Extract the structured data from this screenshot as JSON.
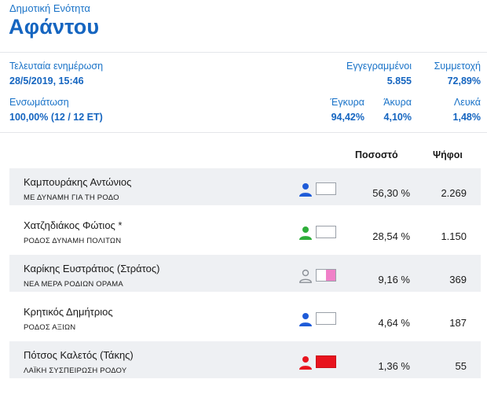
{
  "header": {
    "subtitle": "Δημοτική Ενότητα",
    "title": "Αφάντου"
  },
  "summary": {
    "last_update_label": "Τελευταία ενημέρωση",
    "last_update_value": "28/5/2019, 15:46",
    "integration_label": "Ενσωμάτωση",
    "integration_value": "100,00% (12 / 12 ΕΤ)",
    "registered_label": "Εγγεγραμμένοι",
    "registered_value": "5.855",
    "turnout_label": "Συμμετοχή",
    "turnout_value": "72,89%",
    "valid_label": "Έγκυρα",
    "valid_value": "94,42%",
    "invalid_label": "Άκυρα",
    "invalid_value": "4,10%",
    "blank_label": "Λευκά",
    "blank_value": "1,48%"
  },
  "table": {
    "percent_header": "Ποσοστό",
    "votes_header": "Ψήφοι",
    "rows": [
      {
        "name": "Καμπουράκης Αντώνιος",
        "party": "ΜΕ ΔΥΝΑΜΗ ΓΙΑ ΤΗ ΡΟΔΟ",
        "percent": "56,30 %",
        "votes": "2.269",
        "person_color": "#1e5bd8",
        "swatch_left": "#ffffff",
        "swatch_right": "#ffffff",
        "person_icon": "person-icon"
      },
      {
        "name": "Χατζηδιάκος Φώτιος *",
        "party": "ΡΟΔΟΣ ΔΥΝΑΜΗ ΠΟΛΙΤΩΝ",
        "percent": "28,54 %",
        "votes": "1.150",
        "person_color": "#2eae3a",
        "swatch_left": "#ffffff",
        "swatch_right": "#ffffff",
        "person_icon": "person-icon"
      },
      {
        "name": "Καρίκης Ευστράτιος (Στράτος)",
        "party": "ΝΕΑ ΜΕΡΑ ΡΟΔΙΩΝ ΟΡΑΜΑ",
        "percent": "9,16 %",
        "votes": "369",
        "person_color": "#8a8f96",
        "swatch_left": "#ffffff",
        "swatch_right": "#f080c8",
        "person_icon": "person-outline-icon"
      },
      {
        "name": "Κρητικός Δημήτριος",
        "party": "ΡΟΔΟΣ ΑΞΙΩΝ",
        "percent": "4,64 %",
        "votes": "187",
        "person_color": "#1e5bd8",
        "swatch_left": "#ffffff",
        "swatch_right": "#ffffff",
        "person_icon": "person-icon"
      },
      {
        "name": "Πότσος Καλετός (Τάκης)",
        "party": "ΛΑΪΚΗ ΣΥΣΠΕΙΡΩΣΗ ΡΟΔΟΥ",
        "percent": "1,36 %",
        "votes": "55",
        "person_color": "#e8141e",
        "swatch_left": "#e8141e",
        "swatch_right": "#e8141e",
        "person_icon": "person-icon"
      }
    ]
  }
}
